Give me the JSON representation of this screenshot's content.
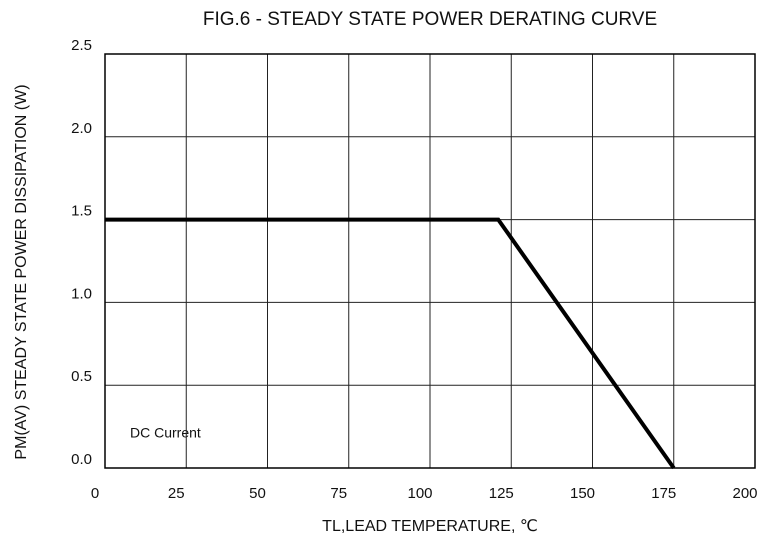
{
  "chart_data": {
    "type": "line",
    "title": "FIG.6 - STEADY STATE POWER DERATING CURVE",
    "xlabel": "TL,LEAD TEMPERATURE, ℃",
    "ylabel": "PM(AV)  STEADY STATE POWER DISSIPATION (W)",
    "annotation": "DC Current",
    "x": [
      0,
      121,
      175
    ],
    "values": [
      1.5,
      1.5,
      0
    ],
    "color": "#000000",
    "xlim": [
      0,
      200
    ],
    "xticks": [
      0,
      25,
      50,
      75,
      100,
      125,
      150,
      175,
      200
    ],
    "ylim": [
      0,
      2.5
    ],
    "yticks": [
      {
        "value": 0,
        "label": "0.0"
      },
      {
        "value": 0.5,
        "label": "0.5"
      },
      {
        "value": 1,
        "label": "1.0"
      },
      {
        "value": 1.5,
        "label": "1.5"
      },
      {
        "value": 2,
        "label": "2.0"
      },
      {
        "value": 2.5,
        "label": "2.5"
      }
    ],
    "grid": true
  }
}
